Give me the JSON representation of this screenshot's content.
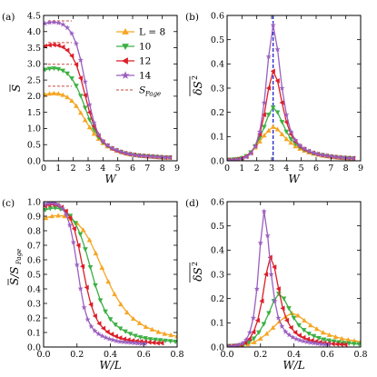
{
  "colors": {
    "L8": "#f5a623",
    "L10": "#3cb043",
    "L12": "#dc1e28",
    "L14": "#9b5fc0",
    "page": "#c8463c",
    "vline": "#2222cc"
  },
  "chart_data": [
    {
      "type": "line",
      "panel": "(a)",
      "xlabel": "W",
      "ylabel": "S̄",
      "xlim": [
        0,
        9
      ],
      "ylim": [
        0,
        4.5
      ],
      "xticks": [
        0,
        1,
        2,
        3,
        4,
        5,
        6,
        7,
        8,
        9
      ],
      "yticks": [
        0.0,
        0.5,
        1.0,
        1.5,
        2.0,
        2.5,
        3.0,
        3.5,
        4.0,
        4.5
      ],
      "x": [
        0.1,
        0.4,
        0.7,
        1.0,
        1.3,
        1.6,
        1.9,
        2.2,
        2.5,
        2.8,
        3.1,
        3.4,
        3.7,
        4.0,
        4.3,
        4.6,
        4.9,
        5.2,
        5.5,
        5.8,
        6.1,
        6.4,
        6.7,
        7.0,
        7.3,
        7.6,
        7.9,
        8.2,
        8.5
      ],
      "series": [
        {
          "name": "L = 8",
          "key": "L8",
          "marker": "triangle-up",
          "values": [
            2.05,
            2.08,
            2.09,
            2.08,
            2.04,
            1.97,
            1.86,
            1.7,
            1.49,
            1.26,
            1.04,
            0.84,
            0.68,
            0.55,
            0.45,
            0.38,
            0.32,
            0.28,
            0.24,
            0.21,
            0.19,
            0.17,
            0.15,
            0.14,
            0.13,
            0.12,
            0.11,
            0.1,
            0.1
          ]
        },
        {
          "name": "10",
          "key": "L10",
          "marker": "triangle-down",
          "values": [
            2.82,
            2.85,
            2.86,
            2.84,
            2.79,
            2.7,
            2.55,
            2.32,
            2.01,
            1.64,
            1.27,
            0.96,
            0.73,
            0.57,
            0.46,
            0.38,
            0.32,
            0.27,
            0.23,
            0.2,
            0.18,
            0.16,
            0.15,
            0.14,
            0.13,
            0.12,
            0.11,
            0.1,
            0.1
          ]
        },
        {
          "name": "12",
          "key": "L12",
          "marker": "triangle-left",
          "values": [
            3.55,
            3.58,
            3.59,
            3.57,
            3.52,
            3.42,
            3.25,
            2.98,
            2.56,
            2.03,
            1.5,
            1.07,
            0.78,
            0.59,
            0.47,
            0.38,
            0.32,
            0.27,
            0.23,
            0.2,
            0.18,
            0.16,
            0.15,
            0.14,
            0.13,
            0.12,
            0.11,
            0.1,
            0.1
          ]
        },
        {
          "name": "14",
          "key": "L14",
          "marker": "star",
          "values": [
            4.25,
            4.28,
            4.29,
            4.27,
            4.22,
            4.12,
            3.94,
            3.63,
            3.12,
            2.45,
            1.74,
            1.18,
            0.82,
            0.61,
            0.48,
            0.39,
            0.33,
            0.28,
            0.24,
            0.21,
            0.18,
            0.16,
            0.15,
            0.14,
            0.13,
            0.12,
            0.11,
            0.1,
            0.1
          ]
        }
      ],
      "page_values": [
        {
          "key": "L8",
          "y": 2.31
        },
        {
          "key": "L10",
          "y": 2.99
        },
        {
          "key": "L12",
          "y": 3.66
        },
        {
          "key": "L14",
          "y": 4.33
        }
      ],
      "page_x": [
        0.3,
        1.9
      ],
      "legend": {
        "placement": "top-right",
        "title_prefix": "L = ",
        "entries": [
          "8",
          "10",
          "12",
          "14"
        ],
        "page_label_main": "S",
        "page_label_sub": "Page"
      }
    },
    {
      "type": "line",
      "panel": "(b)",
      "xlabel": "W",
      "ylabel": "δS² (overline)",
      "xlim": [
        0,
        9
      ],
      "ylim": [
        0,
        0.6
      ],
      "xticks": [
        0,
        1,
        2,
        3,
        4,
        5,
        6,
        7,
        8,
        9
      ],
      "yticks": [
        0.0,
        0.1,
        0.2,
        0.3,
        0.4,
        0.5,
        0.6
      ],
      "vline_x": 3.1,
      "x": [
        0.1,
        0.4,
        0.7,
        1.0,
        1.3,
        1.6,
        1.9,
        2.2,
        2.5,
        2.8,
        3.1,
        3.4,
        3.7,
        4.0,
        4.3,
        4.6,
        4.9,
        5.2,
        5.5,
        5.8,
        6.1,
        6.4,
        6.7,
        7.0,
        7.3,
        7.6,
        7.9,
        8.2,
        8.5
      ],
      "series": [
        {
          "name": "L = 8",
          "key": "L8",
          "marker": "triangle-up",
          "values": [
            0.005,
            0.006,
            0.008,
            0.012,
            0.02,
            0.035,
            0.055,
            0.08,
            0.105,
            0.125,
            0.14,
            0.13,
            0.11,
            0.09,
            0.075,
            0.06,
            0.05,
            0.042,
            0.035,
            0.03,
            0.026,
            0.022,
            0.019,
            0.017,
            0.015,
            0.013,
            0.012,
            0.011,
            0.01
          ]
        },
        {
          "name": "10",
          "key": "L10",
          "marker": "triangle-down",
          "values": [
            0.004,
            0.005,
            0.007,
            0.011,
            0.019,
            0.035,
            0.06,
            0.095,
            0.14,
            0.19,
            0.22,
            0.2,
            0.16,
            0.12,
            0.09,
            0.07,
            0.055,
            0.045,
            0.037,
            0.031,
            0.027,
            0.023,
            0.02,
            0.017,
            0.015,
            0.013,
            0.012,
            0.011,
            0.01
          ]
        },
        {
          "name": "12",
          "key": "L12",
          "marker": "triangle-left",
          "values": [
            0.003,
            0.004,
            0.006,
            0.01,
            0.018,
            0.033,
            0.062,
            0.11,
            0.19,
            0.3,
            0.37,
            0.33,
            0.24,
            0.16,
            0.11,
            0.08,
            0.06,
            0.048,
            0.039,
            0.032,
            0.027,
            0.023,
            0.02,
            0.017,
            0.015,
            0.013,
            0.012,
            0.011,
            0.01
          ]
        },
        {
          "name": "14",
          "key": "L14",
          "marker": "star",
          "values": [
            0.002,
            0.003,
            0.005,
            0.009,
            0.016,
            0.03,
            0.06,
            0.12,
            0.24,
            0.43,
            0.56,
            0.46,
            0.3,
            0.19,
            0.12,
            0.085,
            0.063,
            0.05,
            0.04,
            0.033,
            0.028,
            0.024,
            0.021,
            0.018,
            0.016,
            0.014,
            0.012,
            0.011,
            0.01
          ]
        }
      ]
    },
    {
      "type": "line",
      "panel": "(c)",
      "xlabel": "W/L",
      "ylabel": "S̄/S_Page",
      "xlim": [
        0,
        0.8
      ],
      "ylim": [
        0,
        1.0
      ],
      "xticks": [
        0.0,
        0.2,
        0.4,
        0.6,
        0.8
      ],
      "yticks": [
        0.0,
        0.1,
        0.2,
        0.3,
        0.4,
        0.5,
        0.6,
        0.7,
        0.8,
        0.9,
        1.0
      ],
      "series": [
        {
          "name": "L = 8",
          "key": "L8",
          "marker": "triangle-up",
          "L": 8
        },
        {
          "name": "10",
          "key": "L10",
          "marker": "triangle-down",
          "L": 10
        },
        {
          "name": "12",
          "key": "L12",
          "marker": "triangle-left",
          "L": 12
        },
        {
          "name": "14",
          "key": "L14",
          "marker": "star",
          "L": 14
        }
      ],
      "derived_from": "(a)"
    },
    {
      "type": "line",
      "panel": "(d)",
      "xlabel": "W/L",
      "ylabel": "δS² (overline)",
      "xlim": [
        0,
        0.8
      ],
      "ylim": [
        0,
        0.6
      ],
      "xticks": [
        0.0,
        0.2,
        0.4,
        0.6,
        0.8
      ],
      "yticks": [
        0.0,
        0.1,
        0.2,
        0.3,
        0.4,
        0.5,
        0.6
      ],
      "series": [
        {
          "name": "L = 8",
          "key": "L8",
          "marker": "triangle-up",
          "L": 8
        },
        {
          "name": "10",
          "key": "L10",
          "marker": "triangle-down",
          "L": 10
        },
        {
          "name": "12",
          "key": "L12",
          "marker": "triangle-left",
          "L": 12
        },
        {
          "name": "14",
          "key": "L14",
          "marker": "star",
          "L": 14
        }
      ],
      "derived_from": "(b)"
    }
  ]
}
